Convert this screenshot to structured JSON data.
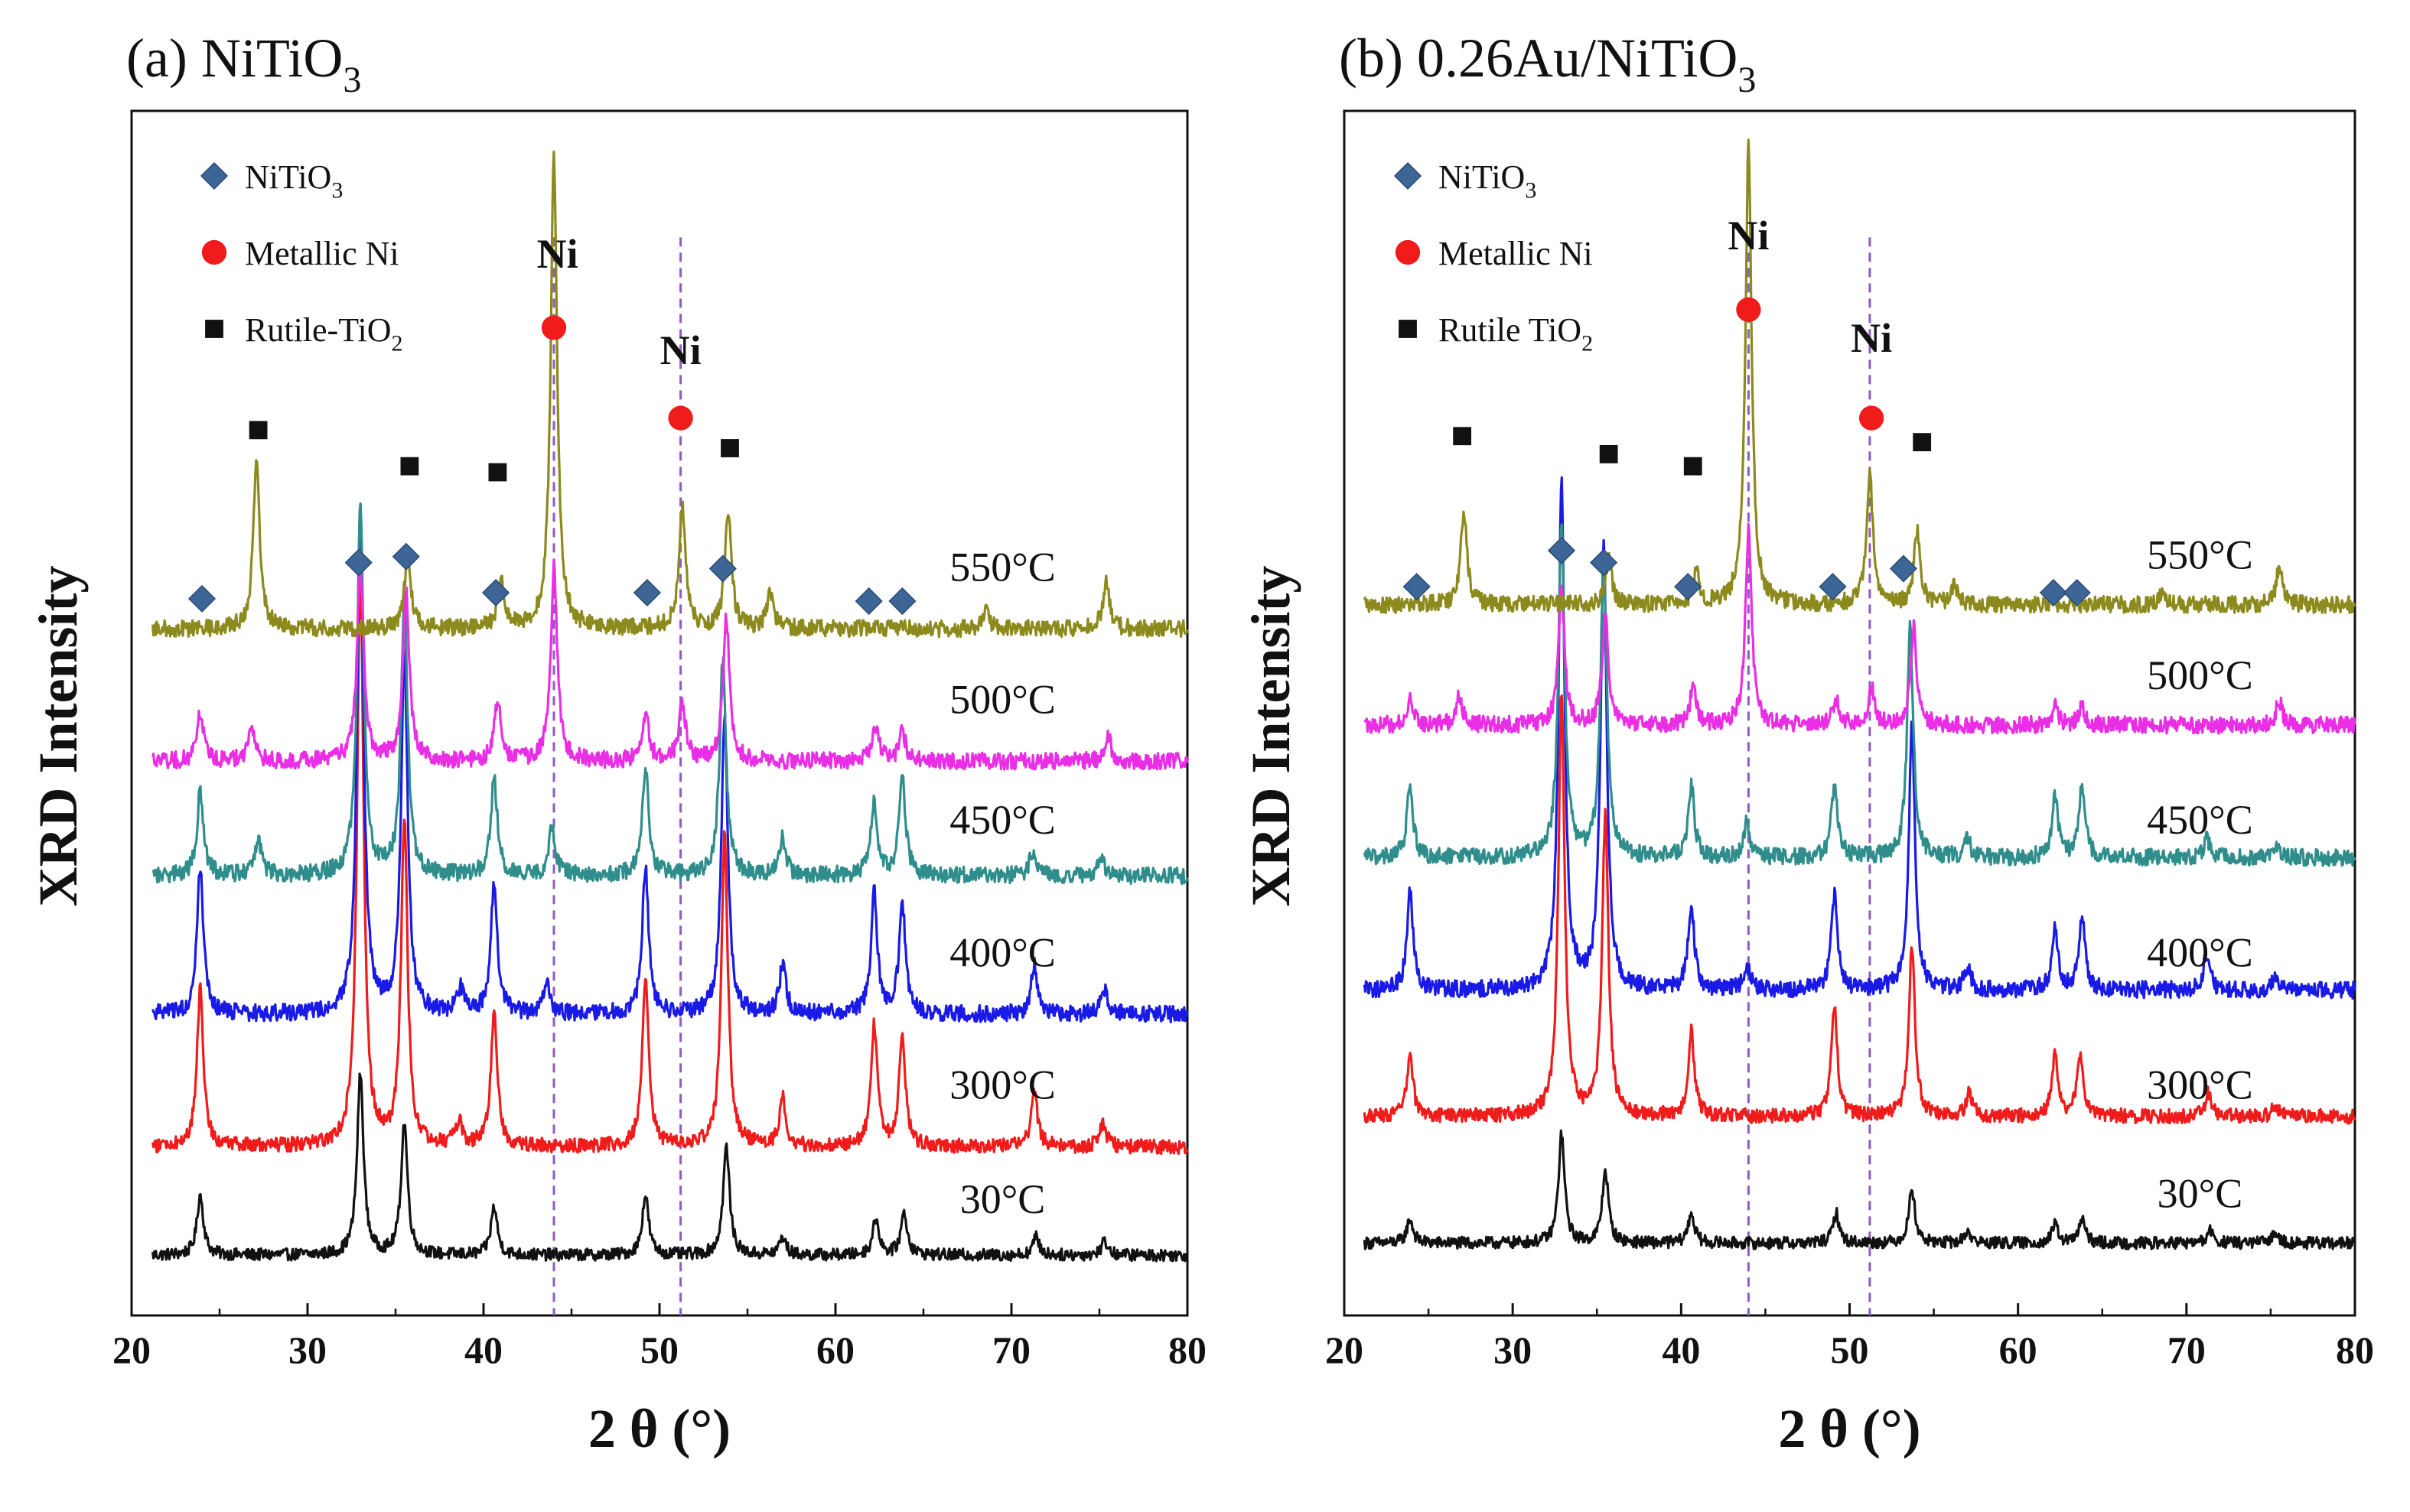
{
  "chart_data": [
    {
      "type": "line",
      "panel_label": "(a) NiTiO",
      "panel_label_sub": "3",
      "xlabel": "2 θ (°)",
      "ylabel": "XRD Intensity",
      "xlim": [
        20,
        80
      ],
      "xticks": [
        20,
        30,
        40,
        50,
        60,
        70,
        80
      ],
      "grid": false,
      "legend": [
        {
          "marker": "diamond",
          "label": "NiTiO",
          "sub": "3",
          "color": "#3d6596"
        },
        {
          "marker": "circle",
          "label": "Metallic Ni",
          "sub": "",
          "color": "#f01b1b"
        },
        {
          "marker": "square",
          "label": "Rutile-TiO",
          "sub": "2",
          "color": "#111111"
        }
      ],
      "legend_position": "top-left",
      "reference_lines_x": [
        44.0,
        51.2
      ],
      "series": [
        {
          "name": "30°C",
          "color": "#111111",
          "baseline": 0.05,
          "noise": 0.005,
          "peaks": [
            [
              23.9,
              0.05
            ],
            [
              33.0,
              0.15
            ],
            [
              35.5,
              0.11
            ],
            [
              40.6,
              0.04
            ],
            [
              49.2,
              0.05
            ],
            [
              53.8,
              0.09
            ],
            [
              57.0,
              0.015
            ],
            [
              62.3,
              0.03
            ],
            [
              63.9,
              0.035
            ],
            [
              71.4,
              0.015
            ],
            [
              75.3,
              0.012
            ]
          ]
        },
        {
          "name": "300°C",
          "color": "#f01b1b",
          "baseline": 0.14,
          "noise": 0.006,
          "peaks": [
            [
              23.9,
              0.13
            ],
            [
              33.0,
              0.48
            ],
            [
              35.5,
              0.27
            ],
            [
              38.6,
              0.02
            ],
            [
              40.6,
              0.11
            ],
            [
              49.2,
              0.14
            ],
            [
              53.7,
              0.26
            ],
            [
              57.0,
              0.04
            ],
            [
              62.2,
              0.1
            ],
            [
              63.8,
              0.09
            ],
            [
              71.3,
              0.045
            ],
            [
              75.2,
              0.02
            ]
          ]
        },
        {
          "name": "400°C",
          "color": "#1a1ae6",
          "baseline": 0.25,
          "noise": 0.007,
          "peaks": [
            [
              23.9,
              0.12
            ],
            [
              33.0,
              0.42
            ],
            [
              35.5,
              0.3
            ],
            [
              38.7,
              0.02
            ],
            [
              40.6,
              0.11
            ],
            [
              43.6,
              0.025
            ],
            [
              49.2,
              0.12
            ],
            [
              53.7,
              0.25
            ],
            [
              57.0,
              0.04
            ],
            [
              62.2,
              0.1
            ],
            [
              63.8,
              0.09
            ],
            [
              71.3,
              0.04
            ],
            [
              75.3,
              0.02
            ]
          ]
        },
        {
          "name": "450°C",
          "color": "#2f8e8c",
          "baseline": 0.365,
          "noise": 0.007,
          "peaks": [
            [
              23.9,
              0.07
            ],
            [
              27.2,
              0.03
            ],
            [
              33.0,
              0.31
            ],
            [
              35.5,
              0.23
            ],
            [
              40.6,
              0.08
            ],
            [
              43.9,
              0.04
            ],
            [
              49.2,
              0.09
            ],
            [
              53.6,
              0.18
            ],
            [
              57.0,
              0.03
            ],
            [
              62.2,
              0.06
            ],
            [
              63.8,
              0.08
            ],
            [
              71.2,
              0.02
            ],
            [
              75.1,
              0.015
            ]
          ]
        },
        {
          "name": "500°C",
          "color": "#ea2ee6",
          "baseline": 0.46,
          "noise": 0.007,
          "peaks": [
            [
              23.9,
              0.04
            ],
            [
              26.8,
              0.03
            ],
            [
              33.0,
              0.16
            ],
            [
              35.6,
              0.14
            ],
            [
              40.8,
              0.05
            ],
            [
              44.0,
              0.16
            ],
            [
              49.2,
              0.04
            ],
            [
              51.3,
              0.05
            ],
            [
              53.8,
              0.12
            ],
            [
              62.3,
              0.03
            ],
            [
              63.8,
              0.025
            ],
            [
              75.5,
              0.02
            ]
          ]
        },
        {
          "name": "550°C",
          "color": "#8c8a1d",
          "baseline": 0.57,
          "noise": 0.007,
          "peaks": [
            [
              27.1,
              0.14
            ],
            [
              35.7,
              0.06
            ],
            [
              41.0,
              0.04
            ],
            [
              44.0,
              0.39
            ],
            [
              51.3,
              0.1
            ],
            [
              53.9,
              0.1
            ],
            [
              56.3,
              0.03
            ],
            [
              68.5,
              0.015
            ],
            [
              75.4,
              0.04
            ]
          ]
        }
      ],
      "temperature_labels": [
        {
          "text": "550°C",
          "x": 69.5,
          "y": 0.61
        },
        {
          "text": "500°C",
          "x": 69.5,
          "y": 0.5
        },
        {
          "text": "450°C",
          "x": 69.5,
          "y": 0.4
        },
        {
          "text": "400°C",
          "x": 69.5,
          "y": 0.29
        },
        {
          "text": "300°C",
          "x": 69.5,
          "y": 0.18
        },
        {
          "text": "30°C",
          "x": 69.5,
          "y": 0.085
        }
      ],
      "peak_markers": [
        {
          "marker": "square",
          "x": 27.2,
          "y": 0.735
        },
        {
          "marker": "square",
          "x": 35.8,
          "y": 0.705
        },
        {
          "marker": "square",
          "x": 40.8,
          "y": 0.7
        },
        {
          "marker": "square",
          "x": 54.0,
          "y": 0.72
        },
        {
          "marker": "circle",
          "x": 44.0,
          "y": 0.82
        },
        {
          "marker": "circle",
          "x": 51.2,
          "y": 0.745
        },
        {
          "marker": "diamond",
          "x": 24.0,
          "y": 0.595
        },
        {
          "marker": "diamond",
          "x": 32.9,
          "y": 0.625
        },
        {
          "marker": "diamond",
          "x": 35.6,
          "y": 0.63
        },
        {
          "marker": "diamond",
          "x": 40.7,
          "y": 0.6
        },
        {
          "marker": "diamond",
          "x": 49.3,
          "y": 0.6
        },
        {
          "marker": "diamond",
          "x": 53.6,
          "y": 0.62
        },
        {
          "marker": "diamond",
          "x": 61.9,
          "y": 0.593
        },
        {
          "marker": "diamond",
          "x": 63.8,
          "y": 0.593
        }
      ],
      "ni_labels": [
        {
          "text": "Ni",
          "x": 44.2,
          "y": 0.87
        },
        {
          "text": "Ni",
          "x": 51.2,
          "y": 0.79
        }
      ]
    },
    {
      "type": "line",
      "panel_label": "(b) 0.26Au/NiTiO",
      "panel_label_sub": "3",
      "xlabel": "2 θ (°)",
      "ylabel": "XRD Intensity",
      "xlim": [
        20,
        80
      ],
      "xticks": [
        20,
        30,
        40,
        50,
        60,
        70,
        80
      ],
      "grid": false,
      "legend": [
        {
          "marker": "diamond",
          "label": "NiTiO",
          "sub": "3",
          "color": "#3d6596"
        },
        {
          "marker": "circle",
          "label": "Metallic Ni",
          "sub": "",
          "color": "#f01b1b"
        },
        {
          "marker": "square",
          "label": "Rutile TiO",
          "sub": "2",
          "color": "#111111"
        }
      ],
      "legend_position": "top-left",
      "reference_lines_x": [
        44.0,
        51.2
      ],
      "series": [
        {
          "name": "30°C",
          "color": "#111111",
          "baseline": 0.06,
          "noise": 0.005,
          "peaks": [
            [
              23.9,
              0.02
            ],
            [
              32.9,
              0.09
            ],
            [
              35.5,
              0.06
            ],
            [
              40.6,
              0.025
            ],
            [
              49.2,
              0.025
            ],
            [
              53.7,
              0.045
            ],
            [
              57.0,
              0.01
            ],
            [
              62.2,
              0.015
            ],
            [
              63.8,
              0.02
            ],
            [
              71.4,
              0.01
            ],
            [
              75.3,
              0.01
            ]
          ]
        },
        {
          "name": "300°C",
          "color": "#f01b1b",
          "baseline": 0.165,
          "noise": 0.006,
          "peaks": [
            [
              23.9,
              0.05
            ],
            [
              32.9,
              0.35
            ],
            [
              35.5,
              0.25
            ],
            [
              40.6,
              0.07
            ],
            [
              49.1,
              0.09
            ],
            [
              53.7,
              0.14
            ],
            [
              57.1,
              0.02
            ],
            [
              62.2,
              0.05
            ],
            [
              63.7,
              0.05
            ],
            [
              71.3,
              0.02
            ],
            [
              75.3,
              0.01
            ]
          ]
        },
        {
          "name": "400°C",
          "color": "#1a1ae6",
          "baseline": 0.27,
          "noise": 0.007,
          "peaks": [
            [
              23.9,
              0.08
            ],
            [
              32.9,
              0.42
            ],
            [
              35.4,
              0.37
            ],
            [
              40.6,
              0.07
            ],
            [
              43.9,
              0.02
            ],
            [
              49.1,
              0.08
            ],
            [
              53.7,
              0.22
            ],
            [
              57.0,
              0.02
            ],
            [
              62.2,
              0.05
            ],
            [
              63.8,
              0.06
            ],
            [
              71.2,
              0.03
            ],
            [
              75.2,
              0.01
            ]
          ]
        },
        {
          "name": "450°C",
          "color": "#2f8e8c",
          "baseline": 0.38,
          "noise": 0.007,
          "peaks": [
            [
              23.9,
              0.06
            ],
            [
              32.9,
              0.28
            ],
            [
              35.4,
              0.25
            ],
            [
              40.6,
              0.06
            ],
            [
              43.9,
              0.03
            ],
            [
              49.1,
              0.06
            ],
            [
              53.6,
              0.19
            ],
            [
              57.0,
              0.015
            ],
            [
              62.2,
              0.05
            ],
            [
              63.8,
              0.06
            ],
            [
              71.2,
              0.015
            ],
            [
              75.3,
              0.01
            ]
          ]
        },
        {
          "name": "500°C",
          "color": "#ea2ee6",
          "baseline": 0.49,
          "noise": 0.007,
          "peaks": [
            [
              23.9,
              0.02
            ],
            [
              26.8,
              0.025
            ],
            [
              32.9,
              0.11
            ],
            [
              35.5,
              0.09
            ],
            [
              40.7,
              0.03
            ],
            [
              44.0,
              0.16
            ],
            [
              49.2,
              0.02
            ],
            [
              51.3,
              0.03
            ],
            [
              53.8,
              0.08
            ],
            [
              62.2,
              0.015
            ],
            [
              63.8,
              0.015
            ],
            [
              75.5,
              0.02
            ]
          ]
        },
        {
          "name": "550°C",
          "color": "#8c8a1d",
          "baseline": 0.59,
          "noise": 0.007,
          "peaks": [
            [
              27.1,
              0.08
            ],
            [
              35.7,
              0.04
            ],
            [
              40.9,
              0.025
            ],
            [
              44.0,
              0.38
            ],
            [
              51.2,
              0.11
            ],
            [
              54.0,
              0.06
            ],
            [
              56.2,
              0.015
            ],
            [
              68.5,
              0.01
            ],
            [
              75.5,
              0.03
            ]
          ]
        }
      ],
      "temperature_labels": [
        {
          "text": "550°C",
          "x": 70.8,
          "y": 0.62
        },
        {
          "text": "500°C",
          "x": 70.8,
          "y": 0.52
        },
        {
          "text": "450°C",
          "x": 70.8,
          "y": 0.4
        },
        {
          "text": "400°C",
          "x": 70.8,
          "y": 0.29
        },
        {
          "text": "300°C",
          "x": 70.8,
          "y": 0.18
        },
        {
          "text": "30°C",
          "x": 70.8,
          "y": 0.09
        }
      ],
      "peak_markers": [
        {
          "marker": "square",
          "x": 27.0,
          "y": 0.73
        },
        {
          "marker": "square",
          "x": 35.7,
          "y": 0.715
        },
        {
          "marker": "square",
          "x": 40.7,
          "y": 0.705
        },
        {
          "marker": "square",
          "x": 54.3,
          "y": 0.725
        },
        {
          "marker": "circle",
          "x": 44.0,
          "y": 0.835
        },
        {
          "marker": "circle",
          "x": 51.3,
          "y": 0.745
        },
        {
          "marker": "diamond",
          "x": 24.3,
          "y": 0.605
        },
        {
          "marker": "diamond",
          "x": 32.9,
          "y": 0.635
        },
        {
          "marker": "diamond",
          "x": 35.4,
          "y": 0.625
        },
        {
          "marker": "diamond",
          "x": 40.4,
          "y": 0.605
        },
        {
          "marker": "diamond",
          "x": 49.0,
          "y": 0.605
        },
        {
          "marker": "diamond",
          "x": 53.2,
          "y": 0.62
        },
        {
          "marker": "diamond",
          "x": 62.1,
          "y": 0.6
        },
        {
          "marker": "diamond",
          "x": 63.5,
          "y": 0.6
        }
      ],
      "ni_labels": [
        {
          "text": "Ni",
          "x": 44.0,
          "y": 0.885
        },
        {
          "text": "Ni",
          "x": 51.3,
          "y": 0.8
        }
      ]
    }
  ]
}
